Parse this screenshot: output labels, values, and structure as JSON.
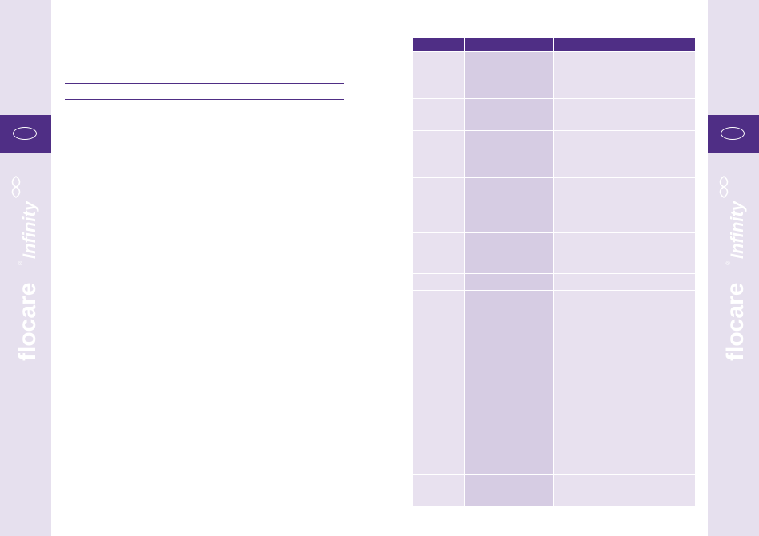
{
  "brand": {
    "name": "flocare",
    "registered": "®",
    "suffix": "Infinity"
  },
  "colors": {
    "accent": "#4f2e85",
    "sidebar": "#e6e0ee",
    "cell_light": "#e8e1ef",
    "cell_mid": "#d6cce3"
  },
  "table": {
    "headers": [
      "",
      "",
      ""
    ],
    "rows": [
      [
        "",
        "",
        ""
      ],
      [
        "",
        "",
        ""
      ],
      [
        "",
        "",
        ""
      ],
      [
        "",
        "",
        ""
      ],
      [
        "",
        "",
        ""
      ],
      [
        "",
        "",
        ""
      ],
      [
        "",
        "",
        ""
      ],
      [
        "",
        "",
        ""
      ],
      [
        "",
        "",
        ""
      ],
      [
        "",
        "",
        ""
      ],
      [
        "",
        "",
        ""
      ]
    ]
  }
}
